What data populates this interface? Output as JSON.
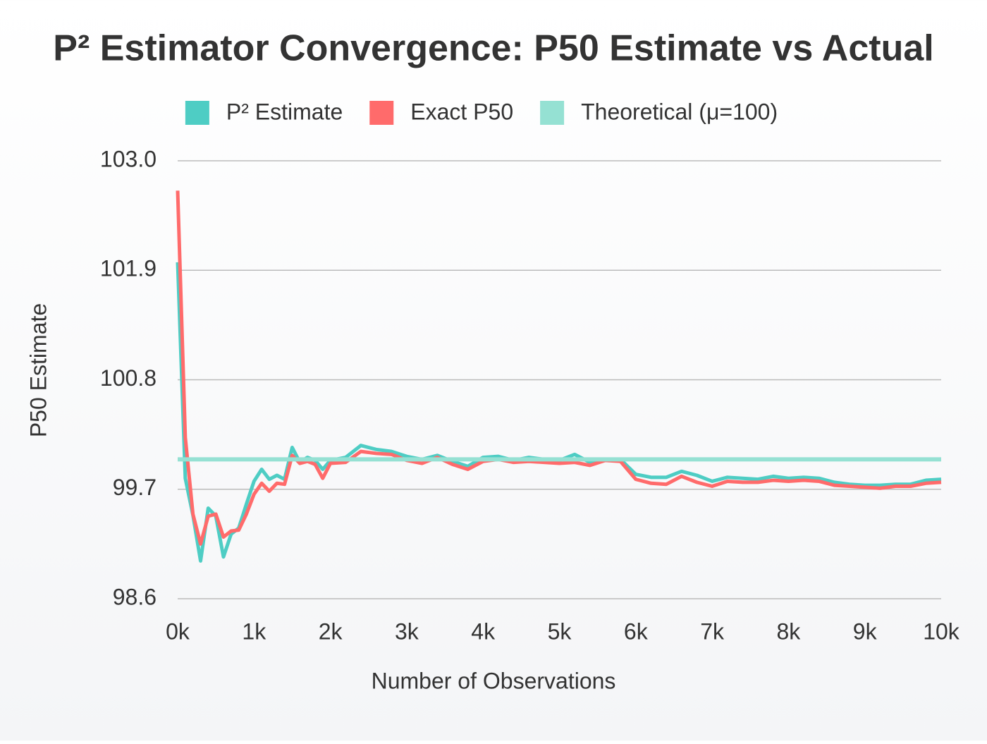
{
  "chart_data": {
    "type": "line",
    "title": "P² Estimator Convergence: P50 Estimate vs Actual",
    "x_label": "Number of Observations",
    "y_label": "P50 Estimate",
    "x": [
      0,
      100,
      200,
      300,
      400,
      500,
      600,
      700,
      800,
      900,
      1000,
      1100,
      1200,
      1300,
      1400,
      1500,
      1600,
      1700,
      1800,
      1900,
      2000,
      2200,
      2400,
      2600,
      2800,
      3000,
      3200,
      3400,
      3600,
      3800,
      4000,
      4200,
      4400,
      4600,
      4800,
      5000,
      5200,
      5400,
      5600,
      5800,
      6000,
      6200,
      6400,
      6600,
      6800,
      7000,
      7200,
      7400,
      7600,
      7800,
      8000,
      8200,
      8400,
      8600,
      8800,
      9000,
      9200,
      9400,
      9600,
      9800,
      10000
    ],
    "series": [
      {
        "name": "P² Estimate",
        "color": "#4ecdc4",
        "values": [
          101.98,
          99.81,
          99.44,
          98.98,
          99.51,
          99.43,
          99.02,
          99.25,
          99.31,
          99.55,
          99.78,
          99.9,
          99.8,
          99.84,
          99.8,
          100.12,
          99.97,
          100.02,
          99.99,
          99.9,
          99.99,
          100.02,
          100.14,
          100.1,
          100.08,
          100.03,
          100.0,
          100.04,
          99.98,
          99.93,
          100.02,
          100.03,
          99.99,
          100.02,
          100.0,
          99.99,
          100.05,
          99.97,
          100.0,
          100.0,
          99.85,
          99.82,
          99.82,
          99.88,
          99.84,
          99.78,
          99.82,
          99.81,
          99.8,
          99.83,
          99.81,
          99.82,
          99.81,
          99.77,
          99.75,
          99.74,
          99.74,
          99.75,
          99.75,
          99.79,
          99.8
        ]
      },
      {
        "name": "Exact P50",
        "color": "#ff6b6b",
        "values": [
          102.7,
          100.22,
          99.45,
          99.15,
          99.43,
          99.45,
          99.22,
          99.28,
          99.29,
          99.45,
          99.65,
          99.76,
          99.68,
          99.76,
          99.75,
          100.04,
          99.96,
          99.98,
          99.95,
          99.81,
          99.96,
          99.97,
          100.08,
          100.06,
          100.05,
          99.99,
          99.96,
          100.02,
          99.95,
          99.9,
          99.98,
          100.0,
          99.97,
          99.98,
          99.97,
          99.96,
          99.97,
          99.94,
          99.99,
          99.98,
          99.8,
          99.76,
          99.75,
          99.83,
          99.77,
          99.73,
          99.78,
          99.77,
          99.77,
          99.79,
          99.78,
          99.79,
          99.78,
          99.74,
          99.73,
          99.72,
          99.71,
          99.73,
          99.73,
          99.76,
          99.77
        ]
      }
    ],
    "reference_line": {
      "name": "Theoretical (μ=100)",
      "value": 100,
      "color": "#95e1d3"
    },
    "xlim": [
      0,
      10000
    ],
    "xticks": [
      {
        "value": 0,
        "label": "0k"
      },
      {
        "value": 1000,
        "label": "1k"
      },
      {
        "value": 2000,
        "label": "2k"
      },
      {
        "value": 3000,
        "label": "3k"
      },
      {
        "value": 4000,
        "label": "4k"
      },
      {
        "value": 5000,
        "label": "5k"
      },
      {
        "value": 6000,
        "label": "6k"
      },
      {
        "value": 7000,
        "label": "7k"
      },
      {
        "value": 8000,
        "label": "8k"
      },
      {
        "value": 9000,
        "label": "9k"
      },
      {
        "value": 10000,
        "label": "10k"
      }
    ],
    "ylim": [
      98.6,
      103
    ],
    "yticks": [
      98.6,
      99.7,
      100.8,
      101.9,
      {
        "value": 103,
        "label": "103.0"
      }
    ],
    "grid": true,
    "legend": "top"
  }
}
